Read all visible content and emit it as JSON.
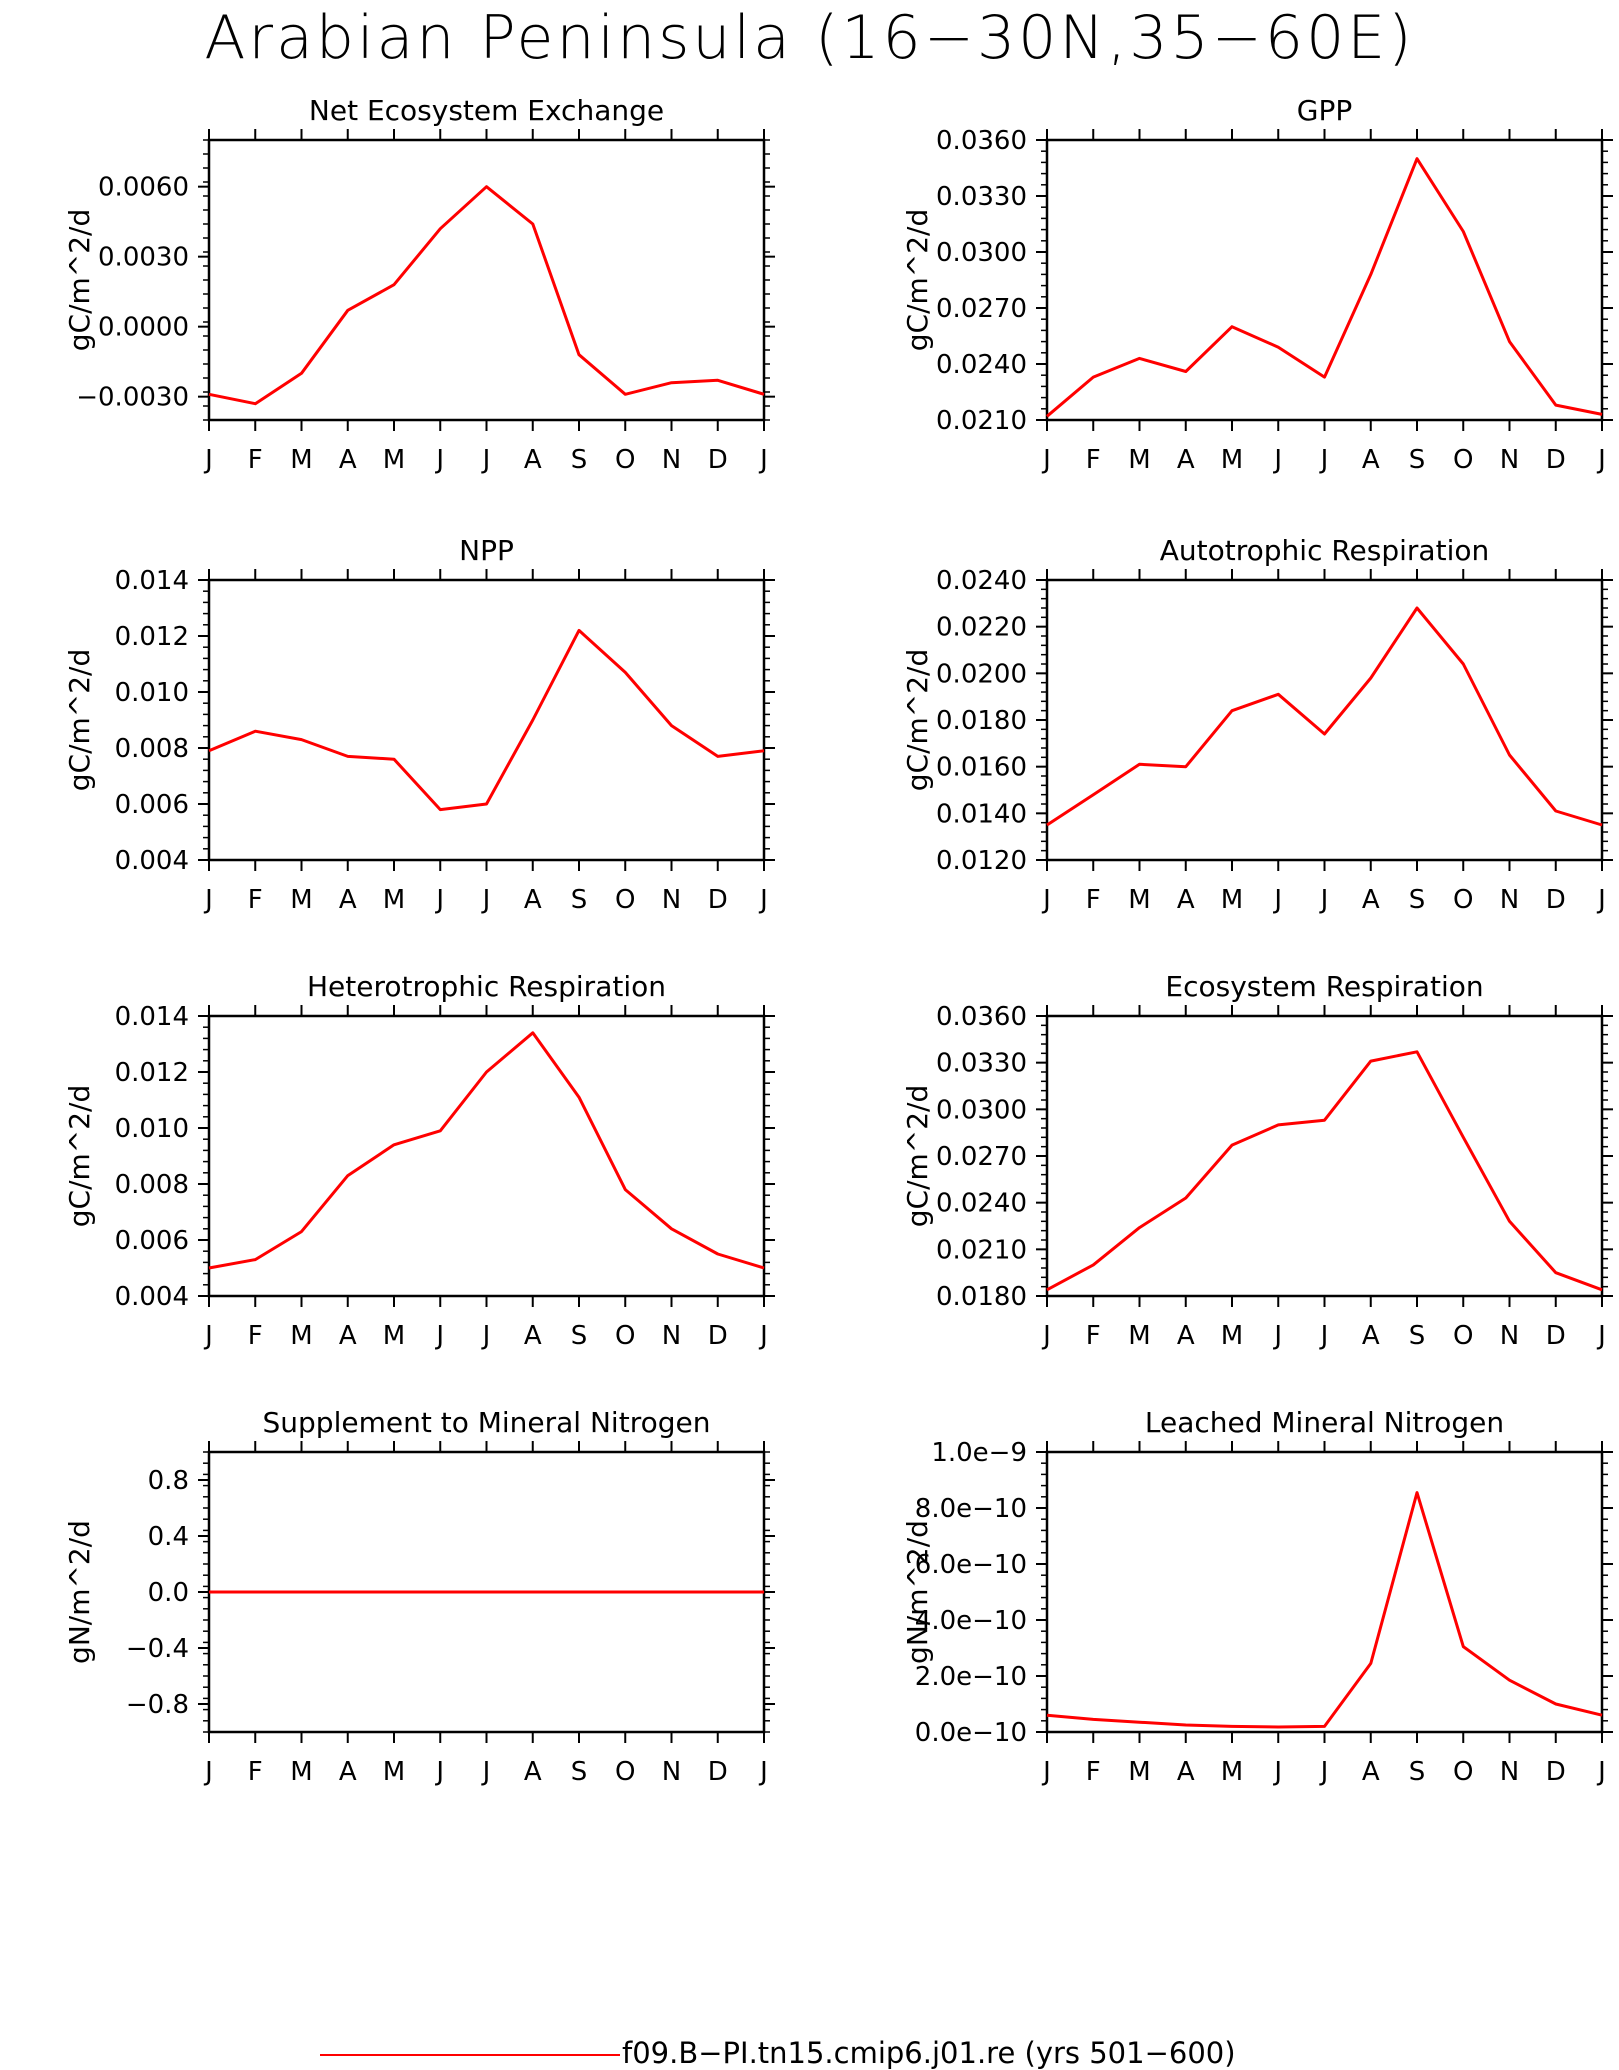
{
  "title": "Arabian Peninsula (16−30N,35−60E)",
  "legend": {
    "label": "f09.B−PI.tn15.cmip6.j01.re (yrs 501−600)",
    "color": "#ff0000"
  },
  "line_color": "#ff0000",
  "chart_data": [
    {
      "type": "line",
      "title": "Net Ecosystem Exchange",
      "ylabel": "gC/m^2/d",
      "categories": [
        "J",
        "F",
        "M",
        "A",
        "M",
        "J",
        "J",
        "A",
        "S",
        "O",
        "N",
        "D",
        "J"
      ],
      "values": [
        -0.0029,
        -0.0033,
        -0.002,
        0.0007,
        0.0018,
        0.0042,
        0.006,
        0.0044,
        -0.0012,
        -0.0029,
        -0.0024,
        -0.0023,
        -0.0029
      ],
      "ylim": [
        -0.004,
        0.008
      ],
      "yticks": [
        -0.003,
        0.0,
        0.003,
        0.006
      ],
      "ytick_labels": [
        "−0.0030",
        "0.0000",
        "0.0030",
        "0.0060"
      ]
    },
    {
      "type": "line",
      "title": "GPP",
      "ylabel": "gC/m^2/d",
      "categories": [
        "J",
        "F",
        "M",
        "A",
        "M",
        "J",
        "J",
        "A",
        "S",
        "O",
        "N",
        "D",
        "J"
      ],
      "values": [
        0.0212,
        0.0233,
        0.0243,
        0.0236,
        0.026,
        0.0249,
        0.0233,
        0.0288,
        0.035,
        0.0311,
        0.0252,
        0.0218,
        0.0213
      ],
      "ylim": [
        0.021,
        0.036
      ],
      "yticks": [
        0.021,
        0.024,
        0.027,
        0.03,
        0.033,
        0.036
      ],
      "ytick_labels": [
        "0.0210",
        "0.0240",
        "0.0270",
        "0.0300",
        "0.0330",
        "0.0360"
      ]
    },
    {
      "type": "line",
      "title": "NPP",
      "ylabel": "gC/m^2/d",
      "categories": [
        "J",
        "F",
        "M",
        "A",
        "M",
        "J",
        "J",
        "A",
        "S",
        "O",
        "N",
        "D",
        "J"
      ],
      "values": [
        0.0079,
        0.0086,
        0.0083,
        0.0077,
        0.0076,
        0.0058,
        0.006,
        0.009,
        0.0122,
        0.0107,
        0.0088,
        0.0077,
        0.0079
      ],
      "ylim": [
        0.004,
        0.014
      ],
      "yticks": [
        0.004,
        0.006,
        0.008,
        0.01,
        0.012,
        0.014
      ],
      "ytick_labels": [
        "0.004",
        "0.006",
        "0.008",
        "0.010",
        "0.012",
        "0.014"
      ]
    },
    {
      "type": "line",
      "title": "Autotrophic Respiration",
      "ylabel": "gC/m^2/d",
      "categories": [
        "J",
        "F",
        "M",
        "A",
        "M",
        "J",
        "J",
        "A",
        "S",
        "O",
        "N",
        "D",
        "J"
      ],
      "values": [
        0.0135,
        0.0148,
        0.0161,
        0.016,
        0.0184,
        0.0191,
        0.0174,
        0.0198,
        0.0228,
        0.0204,
        0.0165,
        0.0141,
        0.0135
      ],
      "ylim": [
        0.012,
        0.024
      ],
      "yticks": [
        0.012,
        0.014,
        0.016,
        0.018,
        0.02,
        0.022,
        0.024
      ],
      "ytick_labels": [
        "0.0120",
        "0.0140",
        "0.0160",
        "0.0180",
        "0.0200",
        "0.0220",
        "0.0240"
      ]
    },
    {
      "type": "line",
      "title": "Heterotrophic Respiration",
      "ylabel": "gC/m^2/d",
      "categories": [
        "J",
        "F",
        "M",
        "A",
        "M",
        "J",
        "J",
        "A",
        "S",
        "O",
        "N",
        "D",
        "J"
      ],
      "values": [
        0.005,
        0.0053,
        0.0063,
        0.0083,
        0.0094,
        0.0099,
        0.012,
        0.0134,
        0.0111,
        0.0078,
        0.0064,
        0.0055,
        0.005
      ],
      "ylim": [
        0.004,
        0.014
      ],
      "yticks": [
        0.004,
        0.006,
        0.008,
        0.01,
        0.012,
        0.014
      ],
      "ytick_labels": [
        "0.004",
        "0.006",
        "0.008",
        "0.010",
        "0.012",
        "0.014"
      ]
    },
    {
      "type": "line",
      "title": "Ecosystem Respiration",
      "ylabel": "gC/m^2/d",
      "categories": [
        "J",
        "F",
        "M",
        "A",
        "M",
        "J",
        "J",
        "A",
        "S",
        "O",
        "N",
        "D",
        "J"
      ],
      "values": [
        0.0184,
        0.02,
        0.0224,
        0.0243,
        0.0277,
        0.029,
        0.0293,
        0.0331,
        0.0337,
        0.0282,
        0.0228,
        0.0195,
        0.0184
      ],
      "ylim": [
        0.018,
        0.036
      ],
      "yticks": [
        0.018,
        0.021,
        0.024,
        0.027,
        0.03,
        0.033,
        0.036
      ],
      "ytick_labels": [
        "0.0180",
        "0.0210",
        "0.0240",
        "0.0270",
        "0.0300",
        "0.0330",
        "0.0360"
      ]
    },
    {
      "type": "line",
      "title": "Supplement to Mineral Nitrogen",
      "ylabel": "gN/m^2/d",
      "categories": [
        "J",
        "F",
        "M",
        "A",
        "M",
        "J",
        "J",
        "A",
        "S",
        "O",
        "N",
        "D",
        "J"
      ],
      "values": [
        0,
        0,
        0,
        0,
        0,
        0,
        0,
        0,
        0,
        0,
        0,
        0,
        0
      ],
      "ylim": [
        -1.0,
        1.0
      ],
      "yticks": [
        -0.8,
        -0.4,
        0.0,
        0.4,
        0.8
      ],
      "ytick_labels": [
        "−0.8",
        "−0.4",
        "0.0",
        "0.4",
        "0.8"
      ]
    },
    {
      "type": "line",
      "title": "Leached Mineral Nitrogen",
      "ylabel": "gN/m^2/d",
      "categories": [
        "J",
        "F",
        "M",
        "A",
        "M",
        "J",
        "J",
        "A",
        "S",
        "O",
        "N",
        "D",
        "J"
      ],
      "values": [
        6e-11,
        4.5e-11,
        3.5e-11,
        2.5e-11,
        2e-11,
        1.8e-11,
        2e-11,
        2.45e-10,
        8.55e-10,
        3.05e-10,
        1.85e-10,
        1e-10,
        6e-11
      ],
      "ylim": [
        0,
        1e-09
      ],
      "yticks": [
        0,
        2e-10,
        4e-10,
        6e-10,
        8e-10,
        1e-09
      ],
      "ytick_labels": [
        "0.0e−10",
        "2.0e−10",
        "4.0e−10",
        "6.0e−10",
        "8.0e−10",
        "1.0e−9"
      ]
    }
  ]
}
